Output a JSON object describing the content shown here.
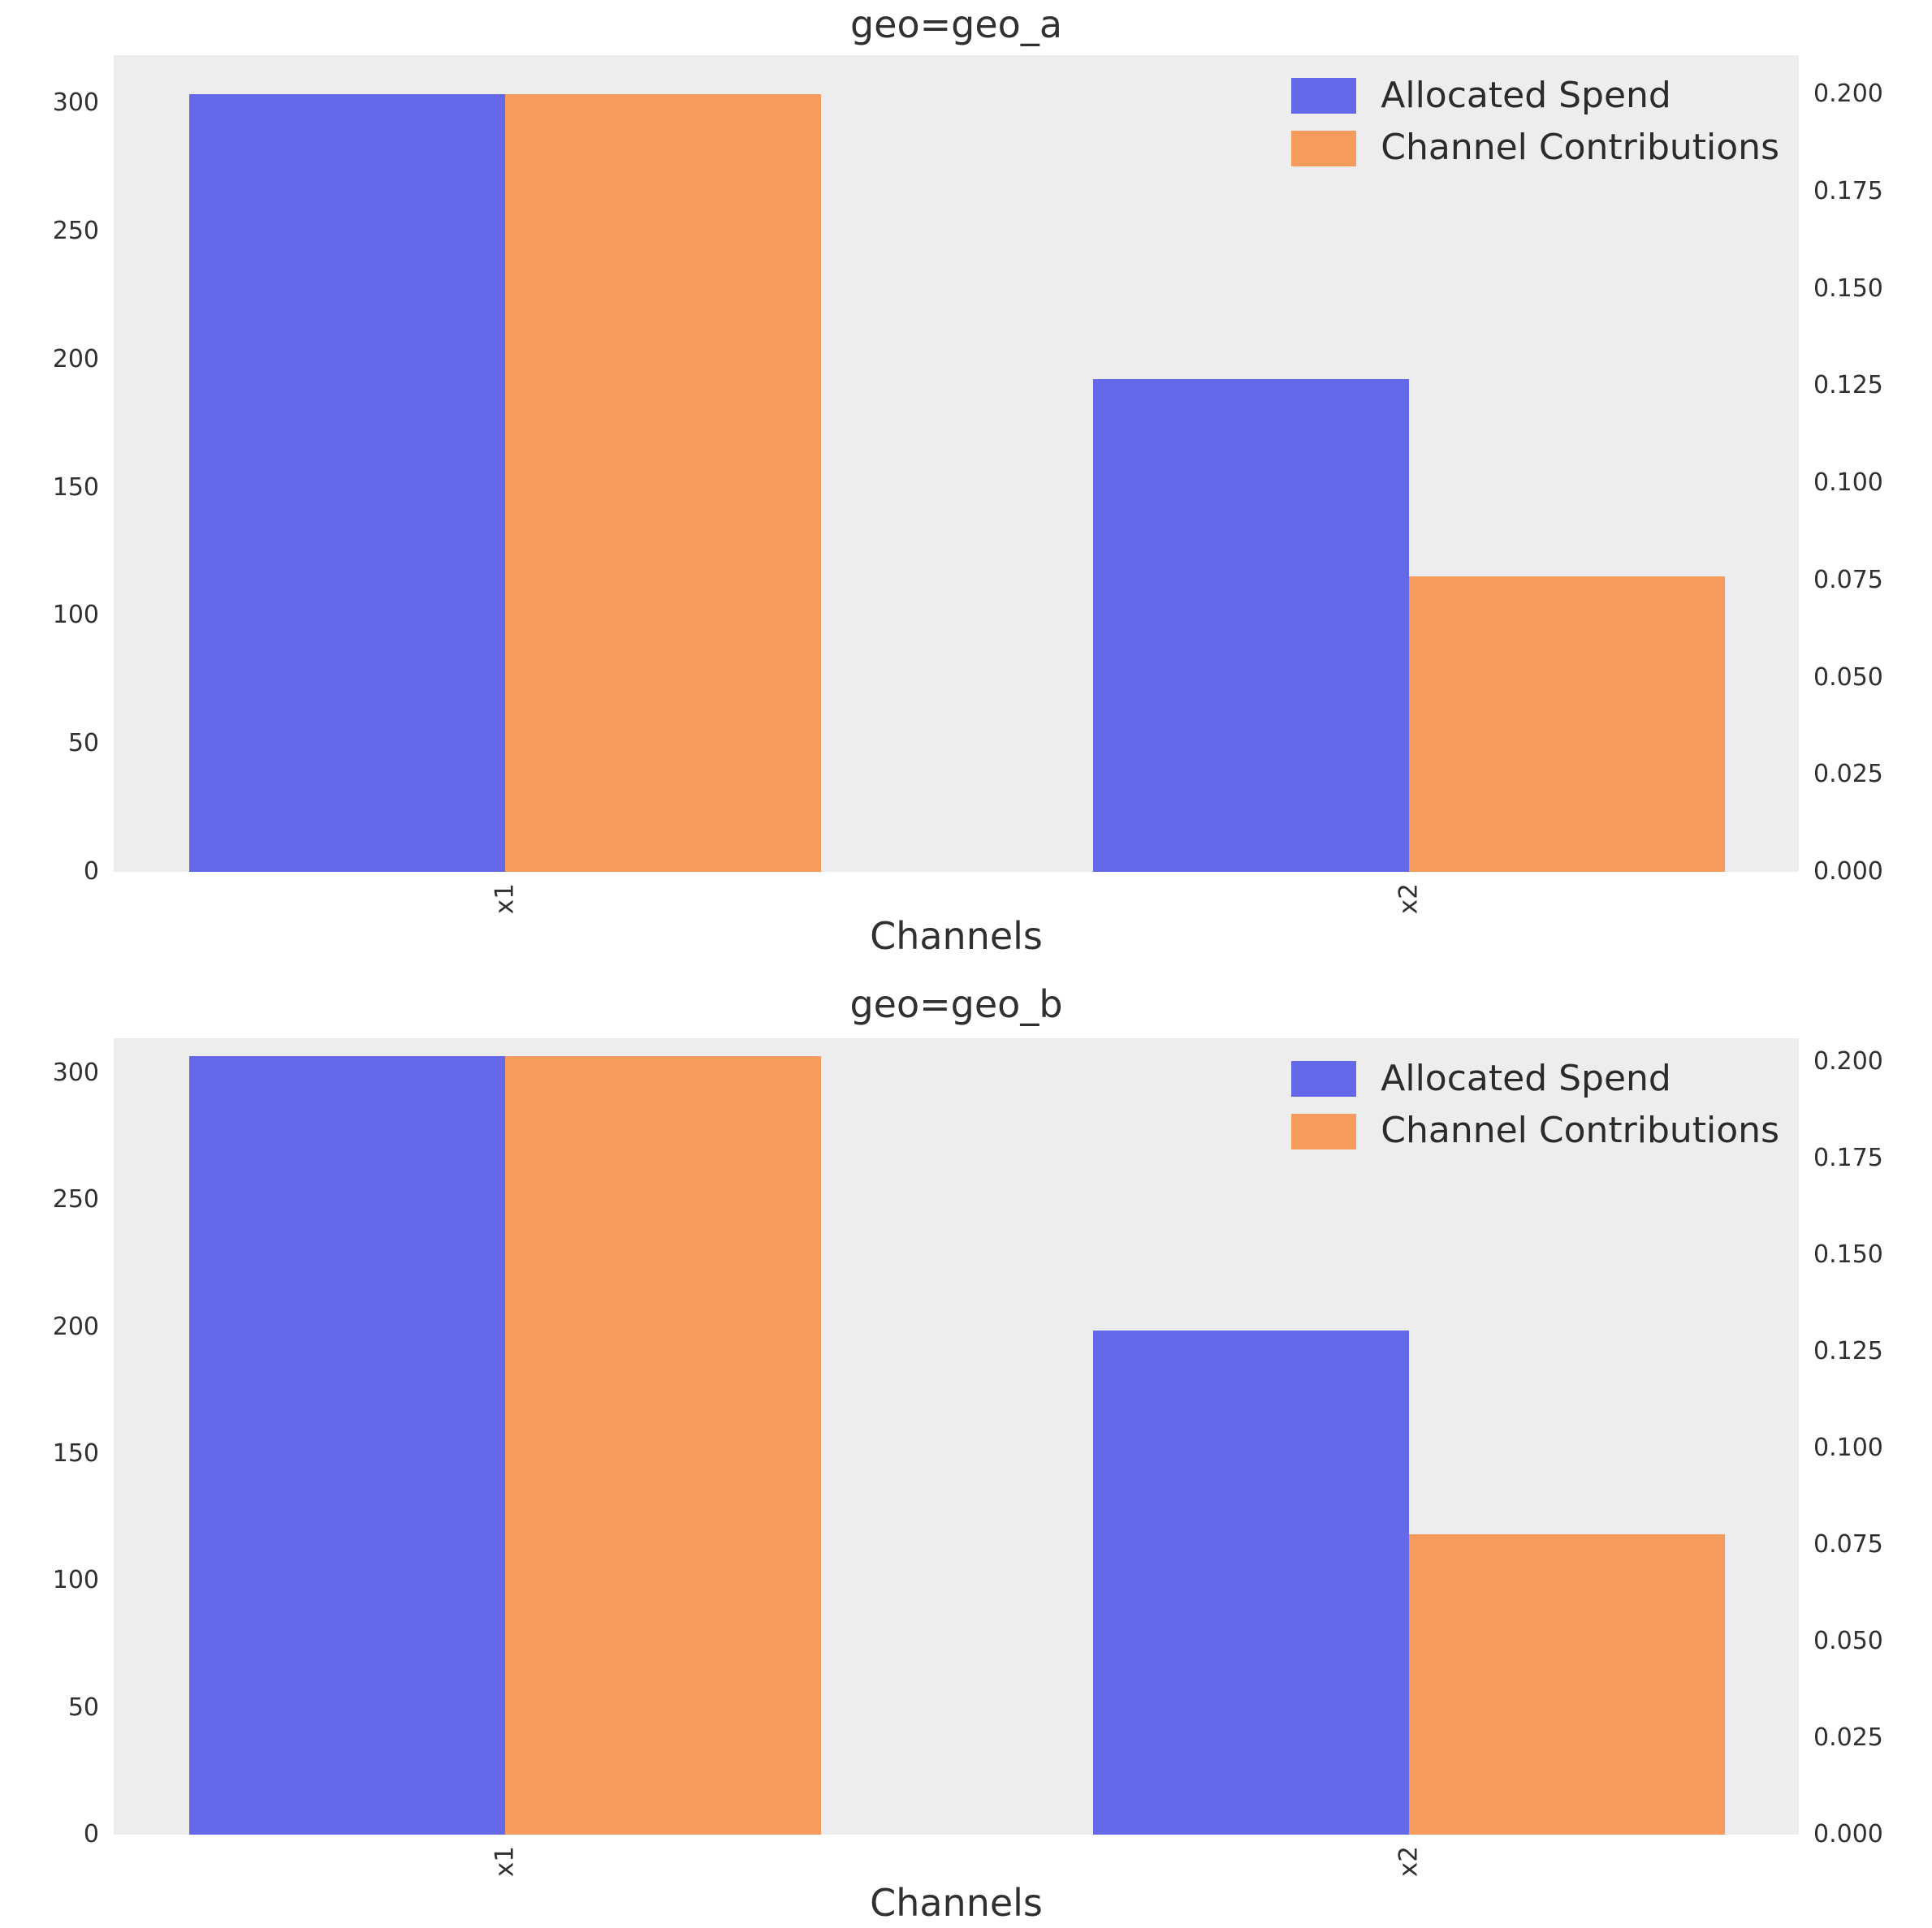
{
  "figure": {
    "background": "#ffffff",
    "plot_background": "#ededed"
  },
  "colors": {
    "spend_bar": "#6469e9",
    "contribution_bar": "#f49b5d",
    "spend_axis_label": "#2424dc",
    "contribution_axis_label": "#f87d13",
    "tick_text": "#303030"
  },
  "chart_data": [
    {
      "type": "bar",
      "title": "geo=geo_a",
      "xlabel": "Channels",
      "ylabel_left": "Allocated Spend",
      "ylabel_right": "Channel Contributions",
      "categories": [
        "x1",
        "x2"
      ],
      "series": [
        {
          "name": "Allocated Spend",
          "axis": "left",
          "values": [
            303.5,
            192.3
          ]
        },
        {
          "name": "Channel Contributions",
          "axis": "right",
          "values": [
            0.2,
            0.076
          ]
        }
      ],
      "ylim_left": [
        0,
        318.7
      ],
      "ylim_right": [
        0,
        0.2101
      ],
      "yticks_left": [
        "0",
        "50",
        "100",
        "150",
        "200",
        "250",
        "300"
      ],
      "yticks_right": [
        "0.000",
        "0.025",
        "0.050",
        "0.075",
        "0.100",
        "0.125",
        "0.150",
        "0.175",
        "0.200"
      ],
      "grid": false,
      "legend_position": "upper right"
    },
    {
      "type": "bar",
      "title": "geo=geo_b",
      "xlabel": "Channels",
      "ylabel_left": "Allocated Spend",
      "ylabel_right": "Channel Contributions",
      "categories": [
        "x1",
        "x2"
      ],
      "series": [
        {
          "name": "Allocated Spend",
          "axis": "left",
          "values": [
            306.6,
            198.6
          ]
        },
        {
          "name": "Channel Contributions",
          "axis": "right",
          "values": [
            0.2015,
            0.0778
          ]
        }
      ],
      "ylim_left": [
        0,
        313.7
      ],
      "ylim_right": [
        0,
        0.2061
      ],
      "yticks_left": [
        "0",
        "50",
        "100",
        "150",
        "200",
        "250",
        "300"
      ],
      "yticks_right": [
        "0.000",
        "0.025",
        "0.050",
        "0.075",
        "0.100",
        "0.125",
        "0.150",
        "0.175",
        "0.200"
      ],
      "grid": false,
      "legend_position": "upper right"
    }
  ]
}
